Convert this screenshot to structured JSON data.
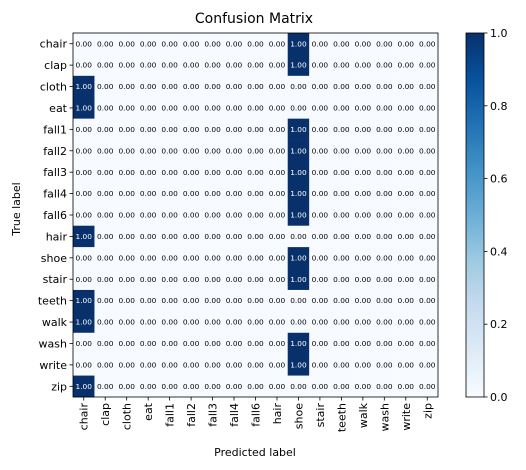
{
  "chart_data": {
    "type": "heatmap",
    "title": "Confusion Matrix",
    "xlabel": "Predicted label",
    "ylabel": "True label",
    "rows": [
      "chair",
      "clap",
      "cloth",
      "eat",
      "fall1",
      "fall2",
      "fall3",
      "fall4",
      "fall6",
      "hair",
      "shoe",
      "stair",
      "teeth",
      "walk",
      "wash",
      "write",
      "zip"
    ],
    "columns": [
      "chair",
      "clap",
      "cloth",
      "eat",
      "fall1",
      "fall2",
      "fall3",
      "fall4",
      "fall6",
      "hair",
      "shoe",
      "stair",
      "teeth",
      "walk",
      "wash",
      "write",
      "zip"
    ],
    "values": [
      [
        0,
        0,
        0,
        0,
        0,
        0,
        0,
        0,
        0,
        0,
        1,
        0,
        0,
        0,
        0,
        0,
        0
      ],
      [
        0,
        0,
        0,
        0,
        0,
        0,
        0,
        0,
        0,
        0,
        1,
        0,
        0,
        0,
        0,
        0,
        0
      ],
      [
        1,
        0,
        0,
        0,
        0,
        0,
        0,
        0,
        0,
        0,
        0,
        0,
        0,
        0,
        0,
        0,
        0
      ],
      [
        1,
        0,
        0,
        0,
        0,
        0,
        0,
        0,
        0,
        0,
        0,
        0,
        0,
        0,
        0,
        0,
        0
      ],
      [
        0,
        0,
        0,
        0,
        0,
        0,
        0,
        0,
        0,
        0,
        1,
        0,
        0,
        0,
        0,
        0,
        0
      ],
      [
        0,
        0,
        0,
        0,
        0,
        0,
        0,
        0,
        0,
        0,
        1,
        0,
        0,
        0,
        0,
        0,
        0
      ],
      [
        0,
        0,
        0,
        0,
        0,
        0,
        0,
        0,
        0,
        0,
        1,
        0,
        0,
        0,
        0,
        0,
        0
      ],
      [
        0,
        0,
        0,
        0,
        0,
        0,
        0,
        0,
        0,
        0,
        1,
        0,
        0,
        0,
        0,
        0,
        0
      ],
      [
        0,
        0,
        0,
        0,
        0,
        0,
        0,
        0,
        0,
        0,
        1,
        0,
        0,
        0,
        0,
        0,
        0
      ],
      [
        1,
        0,
        0,
        0,
        0,
        0,
        0,
        0,
        0,
        0,
        0,
        0,
        0,
        0,
        0,
        0,
        0
      ],
      [
        0,
        0,
        0,
        0,
        0,
        0,
        0,
        0,
        0,
        0,
        1,
        0,
        0,
        0,
        0,
        0,
        0
      ],
      [
        0,
        0,
        0,
        0,
        0,
        0,
        0,
        0,
        0,
        0,
        1,
        0,
        0,
        0,
        0,
        0,
        0
      ],
      [
        1,
        0,
        0,
        0,
        0,
        0,
        0,
        0,
        0,
        0,
        0,
        0,
        0,
        0,
        0,
        0,
        0
      ],
      [
        1,
        0,
        0,
        0,
        0,
        0,
        0,
        0,
        0,
        0,
        0,
        0,
        0,
        0,
        0,
        0,
        0
      ],
      [
        0,
        0,
        0,
        0,
        0,
        0,
        0,
        0,
        0,
        0,
        1,
        0,
        0,
        0,
        0,
        0,
        0
      ],
      [
        0,
        0,
        0,
        0,
        0,
        0,
        0,
        0,
        0,
        0,
        1,
        0,
        0,
        0,
        0,
        0,
        0
      ],
      [
        1,
        0,
        0,
        0,
        0,
        0,
        0,
        0,
        0,
        0,
        0,
        0,
        0,
        0,
        0,
        0,
        0
      ]
    ],
    "value_format": "0.00",
    "colorscale": {
      "name": "Blues",
      "min": 0.0,
      "max": 1.0,
      "low_color": "#f7fbff",
      "high_color": "#08306b"
    },
    "colorbar_ticks": [
      0.0,
      0.2,
      0.4,
      0.6,
      0.8,
      1.0
    ],
    "colorbar_tick_labels": [
      "0.0",
      "0.2",
      "0.4",
      "0.6",
      "0.8",
      "1.0"
    ]
  }
}
